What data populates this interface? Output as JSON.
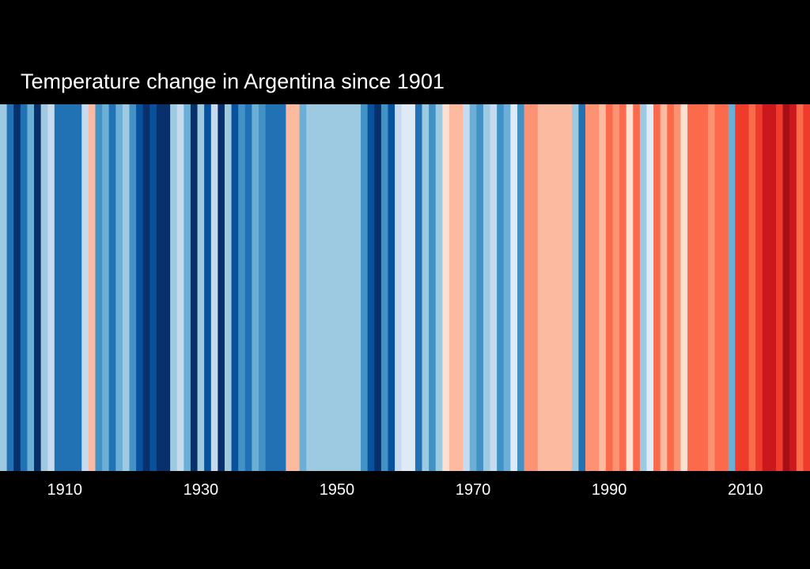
{
  "chart_data": {
    "type": "heatmap",
    "title": "Temperature change in Argentina since 1901",
    "start_year": 1901,
    "end_year": 2019,
    "x_ticks": [
      1910,
      1930,
      1950,
      1970,
      1990,
      2010
    ],
    "x_tick_labels": [
      "1910",
      "1930",
      "1950",
      "1970",
      "1990",
      "2010"
    ],
    "color_scale": [
      "#08306b",
      "#08519c",
      "#2171b5",
      "#4292c6",
      "#6baed6",
      "#9ecae1",
      "#c6dbef",
      "#deebf7",
      "#fee0d2",
      "#fcbba1",
      "#fc9272",
      "#fb6a4a",
      "#ef3b2c",
      "#cb181d",
      "#a50f15",
      "#67000d"
    ],
    "stripe_levels": [
      5,
      2,
      0,
      2,
      4,
      0,
      5,
      6,
      2,
      2,
      2,
      2,
      6,
      9,
      3,
      4,
      2,
      4,
      5,
      3,
      1,
      0,
      1,
      0,
      0,
      5,
      6,
      4,
      0,
      5,
      1,
      6,
      0,
      5,
      1,
      3,
      2,
      4,
      3,
      2,
      2,
      2,
      9,
      9,
      4,
      5,
      5,
      5,
      5,
      5,
      5,
      5,
      5,
      3,
      1,
      0,
      3,
      1,
      6,
      7,
      7,
      2,
      5,
      3,
      5,
      8,
      9,
      9,
      6,
      4,
      3,
      5,
      6,
      3,
      4,
      7,
      3,
      10,
      10,
      9,
      9,
      9,
      9,
      9,
      5,
      2,
      10,
      10,
      9,
      11,
      10,
      11,
      8,
      11,
      5,
      7,
      11,
      9,
      11,
      10,
      8,
      11,
      11,
      11,
      10,
      11,
      11,
      4,
      12,
      12,
      11,
      12,
      13,
      13,
      12,
      14,
      13,
      11,
      12
    ]
  }
}
